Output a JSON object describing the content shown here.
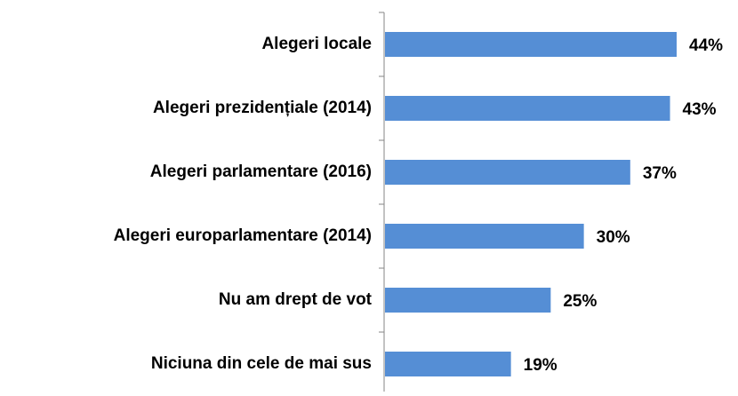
{
  "chart_data": {
    "type": "bar",
    "orientation": "horizontal",
    "categories": [
      "Alegeri locale",
      "Alegeri prezidențiale (2014)",
      "Alegeri parlamentare (2016)",
      "Alegeri europarlamentare (2014)",
      "Nu am drept de vot",
      "Niciuna din cele de mai sus"
    ],
    "values": [
      44,
      43,
      37,
      30,
      25,
      19
    ],
    "value_labels": [
      "44%",
      "43%",
      "37%",
      "30%",
      "25%",
      "19%"
    ],
    "color": "#558ed5"
  }
}
